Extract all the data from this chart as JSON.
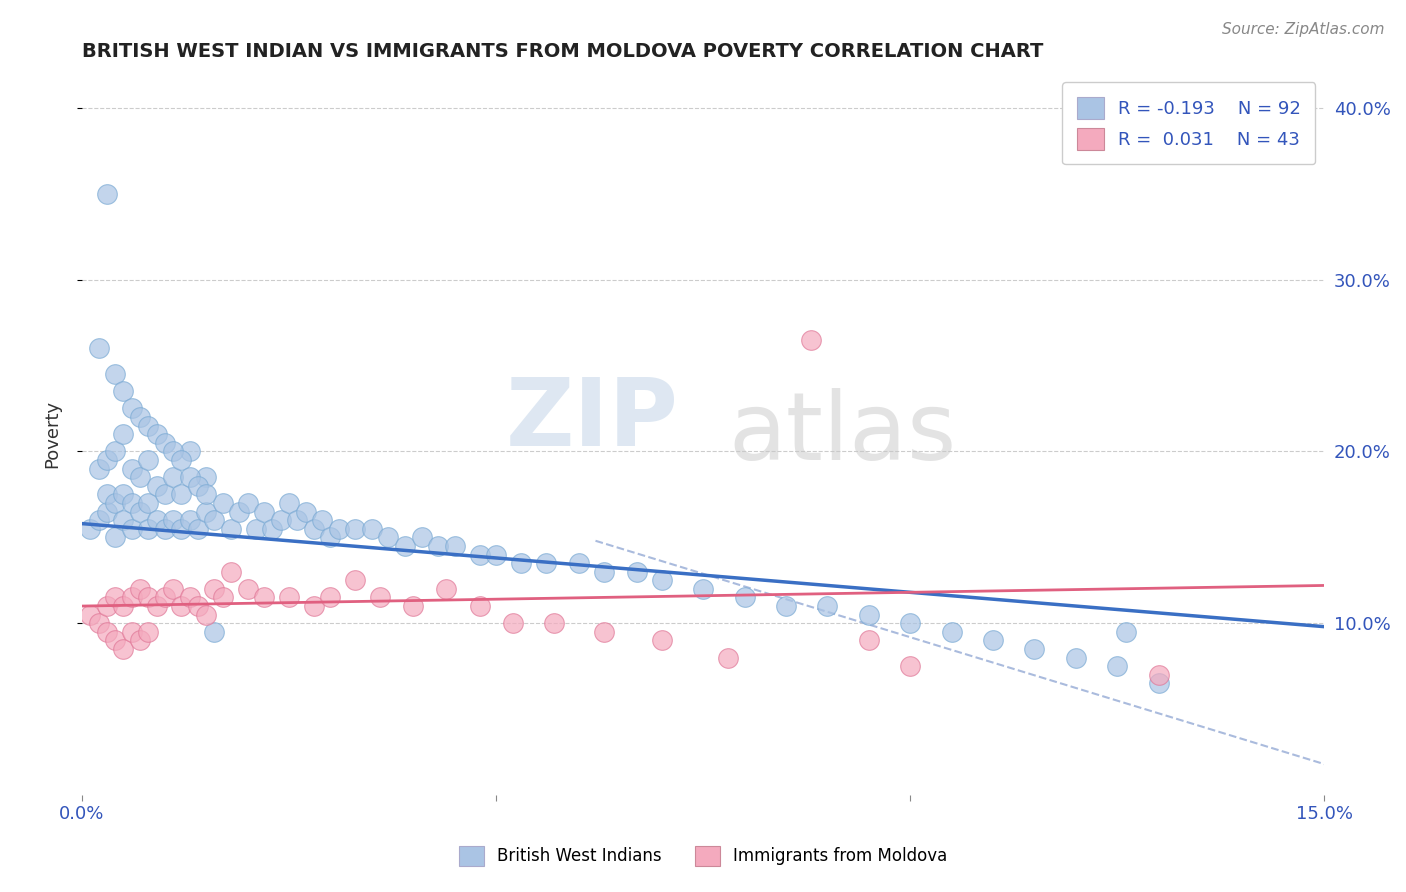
{
  "title": "BRITISH WEST INDIAN VS IMMIGRANTS FROM MOLDOVA POVERTY CORRELATION CHART",
  "source_text": "Source: ZipAtlas.com",
  "ylabel": "Poverty",
  "xlim": [
    0.0,
    0.15
  ],
  "ylim": [
    0.0,
    0.42
  ],
  "blue_color": "#aac4e4",
  "blue_edge_color": "#7aaad4",
  "pink_color": "#f4aabe",
  "pink_edge_color": "#e07898",
  "blue_line_color": "#3a6fc4",
  "pink_line_color": "#e06080",
  "dash_line_color": "#aabbdd",
  "legend_r_blue": "R = -0.193",
  "legend_n_blue": "N = 92",
  "legend_r_pink": "R =  0.031",
  "legend_n_pink": "N = 43",
  "watermark_zip": "ZIP",
  "watermark_atlas": "atlas",
  "background_color": "#ffffff",
  "grid_color": "#cccccc",
  "blue_scatter_x": [
    0.001,
    0.002,
    0.002,
    0.003,
    0.003,
    0.003,
    0.004,
    0.004,
    0.004,
    0.005,
    0.005,
    0.005,
    0.006,
    0.006,
    0.006,
    0.007,
    0.007,
    0.008,
    0.008,
    0.008,
    0.009,
    0.009,
    0.01,
    0.01,
    0.011,
    0.011,
    0.012,
    0.012,
    0.013,
    0.013,
    0.014,
    0.015,
    0.015,
    0.016,
    0.017,
    0.018,
    0.019,
    0.02,
    0.021,
    0.022,
    0.023,
    0.024,
    0.025,
    0.026,
    0.027,
    0.028,
    0.029,
    0.03,
    0.031,
    0.033,
    0.035,
    0.037,
    0.039,
    0.041,
    0.043,
    0.045,
    0.048,
    0.05,
    0.053,
    0.056,
    0.06,
    0.063,
    0.067,
    0.07,
    0.075,
    0.08,
    0.085,
    0.09,
    0.095,
    0.1,
    0.105,
    0.11,
    0.115,
    0.12,
    0.125,
    0.13,
    0.002,
    0.003,
    0.004,
    0.005,
    0.006,
    0.007,
    0.008,
    0.009,
    0.01,
    0.011,
    0.012,
    0.013,
    0.014,
    0.015,
    0.016,
    0.126
  ],
  "blue_scatter_y": [
    0.155,
    0.16,
    0.19,
    0.165,
    0.175,
    0.195,
    0.15,
    0.17,
    0.2,
    0.16,
    0.175,
    0.21,
    0.155,
    0.17,
    0.19,
    0.165,
    0.185,
    0.155,
    0.17,
    0.195,
    0.16,
    0.18,
    0.155,
    0.175,
    0.16,
    0.185,
    0.155,
    0.175,
    0.16,
    0.2,
    0.155,
    0.165,
    0.185,
    0.16,
    0.17,
    0.155,
    0.165,
    0.17,
    0.155,
    0.165,
    0.155,
    0.16,
    0.17,
    0.16,
    0.165,
    0.155,
    0.16,
    0.15,
    0.155,
    0.155,
    0.155,
    0.15,
    0.145,
    0.15,
    0.145,
    0.145,
    0.14,
    0.14,
    0.135,
    0.135,
    0.135,
    0.13,
    0.13,
    0.125,
    0.12,
    0.115,
    0.11,
    0.11,
    0.105,
    0.1,
    0.095,
    0.09,
    0.085,
    0.08,
    0.075,
    0.065,
    0.26,
    0.35,
    0.245,
    0.235,
    0.225,
    0.22,
    0.215,
    0.21,
    0.205,
    0.2,
    0.195,
    0.185,
    0.18,
    0.175,
    0.095,
    0.095
  ],
  "pink_scatter_x": [
    0.001,
    0.002,
    0.003,
    0.003,
    0.004,
    0.004,
    0.005,
    0.005,
    0.006,
    0.006,
    0.007,
    0.007,
    0.008,
    0.008,
    0.009,
    0.01,
    0.011,
    0.012,
    0.013,
    0.014,
    0.015,
    0.016,
    0.017,
    0.018,
    0.02,
    0.022,
    0.025,
    0.028,
    0.03,
    0.033,
    0.036,
    0.04,
    0.044,
    0.048,
    0.052,
    0.057,
    0.063,
    0.07,
    0.078,
    0.088,
    0.095,
    0.1,
    0.13
  ],
  "pink_scatter_y": [
    0.105,
    0.1,
    0.11,
    0.095,
    0.115,
    0.09,
    0.11,
    0.085,
    0.115,
    0.095,
    0.12,
    0.09,
    0.115,
    0.095,
    0.11,
    0.115,
    0.12,
    0.11,
    0.115,
    0.11,
    0.105,
    0.12,
    0.115,
    0.13,
    0.12,
    0.115,
    0.115,
    0.11,
    0.115,
    0.125,
    0.115,
    0.11,
    0.12,
    0.11,
    0.1,
    0.1,
    0.095,
    0.09,
    0.08,
    0.265,
    0.09,
    0.075,
    0.07
  ],
  "blue_trend_x": [
    0.0,
    0.15
  ],
  "blue_trend_y": [
    0.158,
    0.098
  ],
  "pink_trend_x": [
    0.0,
    0.15
  ],
  "pink_trend_y": [
    0.11,
    0.122
  ],
  "dash_line_x": [
    0.062,
    0.15
  ],
  "dash_line_y": [
    0.148,
    0.018
  ]
}
